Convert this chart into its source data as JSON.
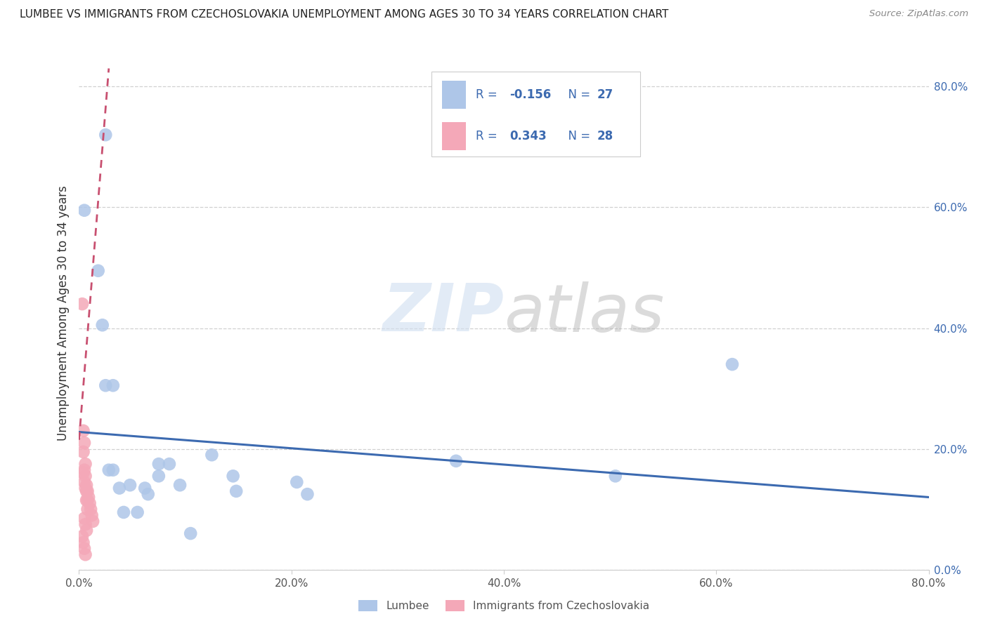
{
  "title": "LUMBEE VS IMMIGRANTS FROM CZECHOSLOVAKIA UNEMPLOYMENT AMONG AGES 30 TO 34 YEARS CORRELATION CHART",
  "source": "Source: ZipAtlas.com",
  "ylabel": "Unemployment Among Ages 30 to 34 years",
  "xlim": [
    0.0,
    0.8
  ],
  "ylim": [
    0.0,
    0.85
  ],
  "lumbee_R": -0.156,
  "lumbee_N": 27,
  "czech_R": 0.343,
  "czech_N": 28,
  "legend_labels": [
    "Lumbee",
    "Immigrants from Czechoslovakia"
  ],
  "lumbee_color": "#aec6e8",
  "czech_color": "#f4a8b8",
  "lumbee_line_color": "#3c6ab0",
  "czech_line_color": "#c85070",
  "watermark_zip": "ZIP",
  "watermark_atlas": "atlas",
  "lumbee_points_x": [
    0.005,
    0.018,
    0.022,
    0.025,
    0.028,
    0.032,
    0.038,
    0.042,
    0.048,
    0.055,
    0.062,
    0.075,
    0.085,
    0.095,
    0.105,
    0.125,
    0.145,
    0.148,
    0.205,
    0.215,
    0.355,
    0.505,
    0.615,
    0.025,
    0.032,
    0.065,
    0.075
  ],
  "lumbee_points_y": [
    0.595,
    0.495,
    0.405,
    0.305,
    0.165,
    0.165,
    0.135,
    0.095,
    0.14,
    0.095,
    0.135,
    0.175,
    0.175,
    0.14,
    0.06,
    0.19,
    0.155,
    0.13,
    0.145,
    0.125,
    0.18,
    0.155,
    0.34,
    0.72,
    0.305,
    0.125,
    0.155
  ],
  "czech_points_x": [
    0.003,
    0.004,
    0.005,
    0.006,
    0.007,
    0.008,
    0.009,
    0.01,
    0.011,
    0.012,
    0.013,
    0.004,
    0.005,
    0.006,
    0.007,
    0.008,
    0.004,
    0.005,
    0.006,
    0.007,
    0.008,
    0.005,
    0.006,
    0.007,
    0.003,
    0.004,
    0.005,
    0.006
  ],
  "czech_points_y": [
    0.44,
    0.23,
    0.21,
    0.175,
    0.14,
    0.13,
    0.12,
    0.11,
    0.1,
    0.09,
    0.08,
    0.195,
    0.165,
    0.155,
    0.13,
    0.115,
    0.16,
    0.145,
    0.135,
    0.115,
    0.1,
    0.085,
    0.075,
    0.065,
    0.055,
    0.045,
    0.035,
    0.025
  ],
  "lumbee_trend_x": [
    0.0,
    0.8
  ],
  "lumbee_trend_y": [
    0.228,
    0.12
  ],
  "czech_trend_x": [
    0.0,
    0.028
  ],
  "czech_trend_y": [
    0.215,
    0.83
  ],
  "x_ticks": [
    0.0,
    0.2,
    0.4,
    0.6,
    0.8
  ],
  "y_ticks": [
    0.0,
    0.2,
    0.4,
    0.6,
    0.8
  ]
}
